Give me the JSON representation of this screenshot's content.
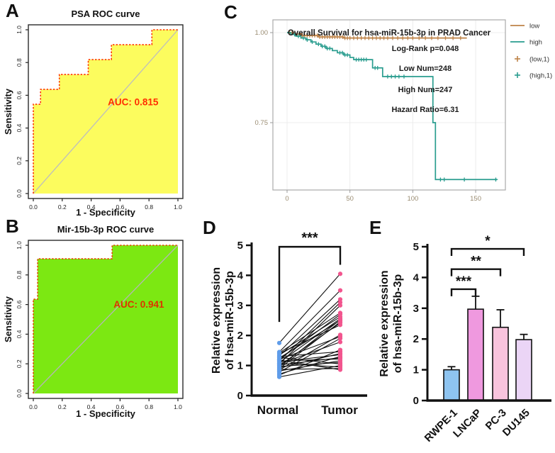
{
  "figure": {
    "panels": {
      "A": "A",
      "B": "B",
      "C": "C",
      "D": "D",
      "E": "E"
    }
  },
  "chart_data": [
    {
      "id": "roc_psa",
      "type": "line",
      "subtype": "roc",
      "title": "PSA ROC curve",
      "xlabel": "1 - Specificity",
      "ylabel": "Sensitivity",
      "xlim": [
        0,
        1
      ],
      "ylim": [
        0,
        1
      ],
      "xticks": [
        "0.0",
        "0.2",
        "0.4",
        "0.6",
        "0.8",
        "1.0"
      ],
      "yticks": [
        "0.0",
        "0.2",
        "0.4",
        "0.6",
        "0.8",
        "1.0"
      ],
      "auc_label": "AUC: 0.815",
      "fill_color": "#FCFC5E",
      "line_color": "#FF3000",
      "auc_color": "#FF2D00",
      "diagonal_color": "#BDBDBD",
      "steps": [
        [
          0,
          0
        ],
        [
          0,
          0.545
        ],
        [
          0.05,
          0.545
        ],
        [
          0.05,
          0.636
        ],
        [
          0.18,
          0.636
        ],
        [
          0.18,
          0.727
        ],
        [
          0.38,
          0.727
        ],
        [
          0.38,
          0.818
        ],
        [
          0.54,
          0.818
        ],
        [
          0.54,
          0.909
        ],
        [
          0.82,
          0.909
        ],
        [
          0.82,
          1.0
        ],
        [
          1.0,
          1.0
        ]
      ]
    },
    {
      "id": "roc_mir",
      "type": "line",
      "subtype": "roc",
      "title": "Mir-15b-3p ROC curve",
      "xlabel": "1 - Specificity",
      "ylabel": "Sensitivity",
      "xlim": [
        0,
        1
      ],
      "ylim": [
        0,
        1
      ],
      "xticks": [
        "0.0",
        "0.2",
        "0.4",
        "0.6",
        "0.8",
        "1.0"
      ],
      "yticks": [
        "0.0",
        "0.2",
        "0.4",
        "0.6",
        "0.8",
        "1.0"
      ],
      "auc_label": "AUC: 0.941",
      "fill_color": "#7CE812",
      "line_color": "#E64400",
      "auc_color": "#DD3300",
      "diagonal_color": "#B5B5B5",
      "steps": [
        [
          0,
          0
        ],
        [
          0,
          0.636
        ],
        [
          0.03,
          0.636
        ],
        [
          0.03,
          0.909
        ],
        [
          0.545,
          0.909
        ],
        [
          0.545,
          1.0
        ],
        [
          1.0,
          1.0
        ]
      ]
    },
    {
      "id": "km",
      "type": "line",
      "subtype": "km",
      "title": "Overall Survival for hsa-miR-15b-3p in PRAD Cancer",
      "annotations": [
        "Log-Rank p=0.048",
        "Low Num=248",
        "High Num=247",
        "Hazard Ratio=6.31"
      ],
      "xticks": [
        0,
        50,
        100,
        150
      ],
      "ytick_labels": [
        "1.00",
        "0.75"
      ],
      "yticks": [
        1.0,
        0.75
      ],
      "xlim": [
        -10,
        178
      ],
      "ylim": [
        0.56,
        1.02
      ],
      "legend": [
        {
          "label": "low",
          "color": "#BE8348",
          "marker": "line"
        },
        {
          "label": "high",
          "color": "#2A9D8F",
          "marker": "line"
        },
        {
          "label": "(low,1)",
          "color": "#BE8348",
          "marker": "cross"
        },
        {
          "label": "(high,1)",
          "color": "#2A9D8F",
          "marker": "cross"
        }
      ],
      "series": [
        {
          "name": "low",
          "color": "#BE8348",
          "steps": [
            [
              0,
              1.0
            ],
            [
              5,
              0.996
            ],
            [
              12,
              0.992
            ],
            [
              25,
              0.988
            ],
            [
              45,
              0.985
            ],
            [
              143,
              0.985
            ]
          ],
          "censors": [
            2,
            4,
            6,
            8,
            10,
            12,
            14,
            16,
            18,
            20,
            22,
            24,
            26,
            28,
            30,
            32,
            34,
            36,
            38,
            40,
            42,
            44,
            46,
            48,
            50,
            53,
            56,
            59,
            62,
            65,
            68,
            71,
            74,
            77,
            80,
            84,
            88,
            92,
            96,
            100,
            105,
            110,
            115,
            120,
            126,
            132,
            138
          ]
        },
        {
          "name": "high",
          "color": "#2A9D8F",
          "steps": [
            [
              0,
              1.0
            ],
            [
              3,
              0.995
            ],
            [
              7,
              0.99
            ],
            [
              11,
              0.985
            ],
            [
              15,
              0.98
            ],
            [
              19,
              0.974
            ],
            [
              23,
              0.968
            ],
            [
              27,
              0.962
            ],
            [
              31,
              0.956
            ],
            [
              36,
              0.95
            ],
            [
              40,
              0.944
            ],
            [
              45,
              0.938
            ],
            [
              50,
              0.931
            ],
            [
              53,
              0.925
            ],
            [
              66,
              0.925
            ],
            [
              68,
              0.902
            ],
            [
              74,
              0.902
            ],
            [
              76,
              0.878
            ],
            [
              116,
              0.878
            ],
            [
              116,
              0.75
            ],
            [
              118,
              0.75
            ],
            [
              118,
              0.592
            ],
            [
              167,
              0.592
            ]
          ],
          "censors": [
            6,
            9,
            13,
            16,
            20,
            25,
            28,
            30,
            32,
            34,
            42,
            44,
            46,
            48,
            55,
            57,
            59,
            61,
            63,
            70,
            72,
            80,
            83,
            86,
            89,
            93,
            122,
            125,
            141,
            166
          ]
        }
      ]
    },
    {
      "id": "paired",
      "type": "scatter",
      "subtype": "paired",
      "ylabel_line1": "Relative expression",
      "ylabel_line2": "of hsa-miR-15b-3p",
      "categories": [
        "Normal",
        "Tumor"
      ],
      "point_colors": {
        "normal": "#5F9CE9",
        "tumor": "#F2558E"
      },
      "line_color": "#111111",
      "ylim": [
        0,
        5
      ],
      "yticks": [
        0,
        1,
        2,
        3,
        4,
        5
      ],
      "significance": "***",
      "pairs": [
        [
          1.75,
          4.05
        ],
        [
          1.45,
          3.5
        ],
        [
          1.32,
          3.2
        ],
        [
          1.15,
          3.1
        ],
        [
          1.05,
          3.0
        ],
        [
          1.42,
          2.75
        ],
        [
          1.2,
          2.7
        ],
        [
          1.35,
          2.62
        ],
        [
          1.1,
          2.56
        ],
        [
          0.95,
          2.52
        ],
        [
          1.25,
          2.5
        ],
        [
          0.9,
          2.45
        ],
        [
          1.0,
          2.42
        ],
        [
          1.4,
          2.35
        ],
        [
          0.85,
          2.02
        ],
        [
          1.2,
          1.96
        ],
        [
          0.78,
          1.9
        ],
        [
          1.05,
          1.78
        ],
        [
          0.68,
          1.52
        ],
        [
          1.3,
          1.46
        ],
        [
          0.92,
          1.4
        ],
        [
          1.12,
          1.36
        ],
        [
          0.72,
          1.3
        ],
        [
          1.02,
          1.26
        ],
        [
          1.15,
          1.22
        ],
        [
          0.82,
          1.16
        ],
        [
          0.97,
          1.1
        ],
        [
          1.27,
          1.05
        ],
        [
          0.62,
          1.0
        ],
        [
          1.07,
          0.95
        ],
        [
          0.87,
          0.9
        ],
        [
          1.18,
          0.86
        ]
      ]
    },
    {
      "id": "bars",
      "type": "bar",
      "ylabel_line1": "Relative expression",
      "ylabel_line2": "of hsa-miR-15b-3p",
      "categories": [
        "RWPE-1",
        "LNCaP",
        "PC-3",
        "DU145"
      ],
      "values": [
        1.0,
        2.97,
        2.38,
        1.98
      ],
      "errors": [
        0.1,
        0.42,
        0.57,
        0.17
      ],
      "bar_colors": [
        "#8EC4F0",
        "#EF99DF",
        "#F9C4DD",
        "#EBD5F6"
      ],
      "ylim": [
        0,
        5
      ],
      "yticks": [
        0,
        1,
        2,
        3,
        4,
        5
      ],
      "significance": [
        {
          "from": 0,
          "to": 1,
          "label": "***",
          "y": 3.62
        },
        {
          "from": 0,
          "to": 2,
          "label": "**",
          "y": 4.27
        },
        {
          "from": 0,
          "to": 3,
          "label": "*",
          "y": 4.93
        }
      ]
    }
  ]
}
